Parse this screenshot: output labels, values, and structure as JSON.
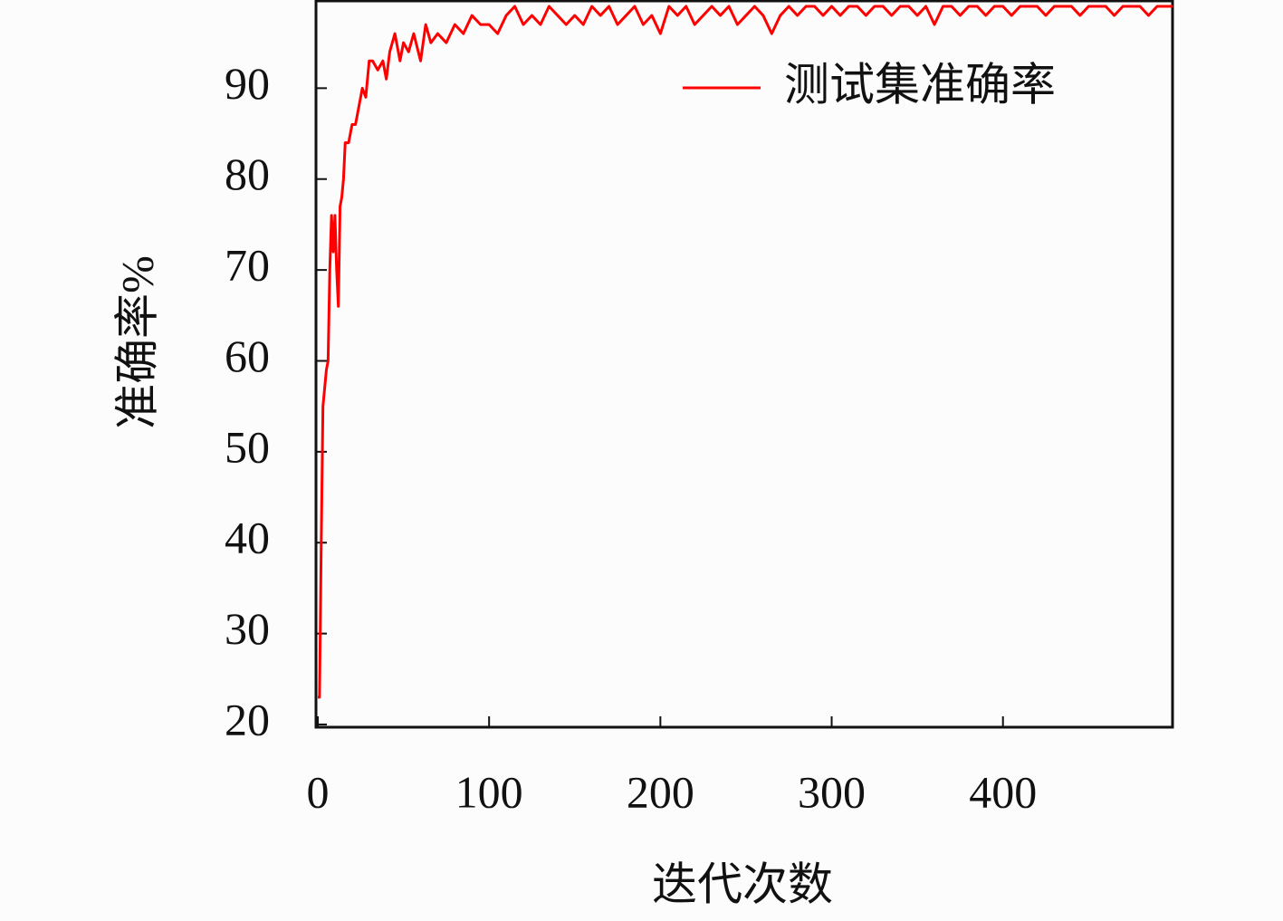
{
  "chart_data": {
    "type": "line",
    "x_label": "迭代次数",
    "y_label": "准确率%",
    "x": [
      0,
      1,
      2,
      3,
      4,
      5,
      6,
      7,
      8,
      9,
      10,
      11,
      12,
      13,
      14,
      15,
      16,
      18,
      20,
      22,
      24,
      26,
      28,
      30,
      32,
      35,
      38,
      40,
      42,
      45,
      48,
      50,
      53,
      56,
      60,
      63,
      66,
      70,
      75,
      80,
      85,
      90,
      95,
      100,
      105,
      110,
      115,
      120,
      125,
      130,
      135,
      140,
      145,
      150,
      155,
      160,
      165,
      170,
      175,
      180,
      185,
      190,
      195,
      200,
      205,
      210,
      215,
      220,
      225,
      230,
      235,
      240,
      245,
      250,
      255,
      260,
      265,
      270,
      275,
      280,
      285,
      290,
      295,
      300,
      305,
      310,
      315,
      320,
      325,
      330,
      335,
      340,
      345,
      350,
      355,
      360,
      365,
      370,
      375,
      380,
      385,
      390,
      395,
      400,
      405,
      410,
      415,
      420,
      425,
      430,
      435,
      440,
      445,
      450,
      455,
      460,
      465,
      470,
      475,
      480,
      485,
      490,
      495,
      499
    ],
    "series": [
      {
        "name": "测试集准确率",
        "color": "#ff0000",
        "values": [
          23,
          23,
          40,
          55,
          57,
          59,
          60,
          70,
          76,
          72,
          76,
          70,
          66,
          77,
          78,
          80,
          84,
          84,
          86,
          86,
          88,
          90,
          89,
          93,
          93,
          92,
          93,
          91,
          94,
          96,
          93,
          95,
          94,
          96,
          93,
          97,
          95,
          96,
          95,
          97,
          96,
          98,
          97,
          97,
          96,
          98,
          99,
          97,
          98,
          97,
          99,
          98,
          97,
          98,
          97,
          99,
          98,
          99,
          97,
          98,
          99,
          97,
          98,
          96,
          99,
          98,
          99,
          97,
          98,
          99,
          98,
          99,
          97,
          98,
          99,
          98,
          96,
          98,
          99,
          98,
          99,
          99,
          98,
          99,
          98,
          99,
          99,
          98,
          99,
          99,
          98,
          99,
          99,
          98,
          99,
          97,
          99,
          99,
          98,
          99,
          99,
          98,
          99,
          99,
          98,
          99,
          99,
          99,
          98,
          99,
          99,
          99,
          98,
          99,
          99,
          99,
          98,
          99,
          99,
          99,
          98,
          99,
          99,
          99
        ]
      }
    ],
    "xlim": [
      0,
      499
    ],
    "ylim": [
      19.7,
      99.6
    ],
    "xticks": [
      0,
      100,
      200,
      300,
      400
    ],
    "yticks": [
      20,
      30,
      40,
      50,
      60,
      70,
      80,
      90
    ],
    "legend": "upper right"
  }
}
